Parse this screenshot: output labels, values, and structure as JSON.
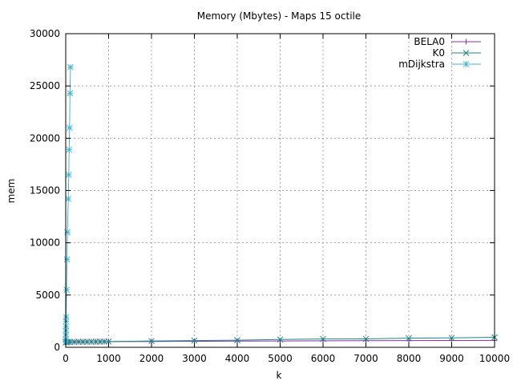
{
  "chart_data": {
    "type": "line",
    "title": "Memory (Mbytes) - Maps 15 octile",
    "xlabel": "k",
    "ylabel": "mem",
    "xlim": [
      0,
      10000
    ],
    "ylim": [
      0,
      30000
    ],
    "xticks": [
      0,
      1000,
      2000,
      3000,
      4000,
      5000,
      6000,
      7000,
      8000,
      9000,
      10000
    ],
    "yticks": [
      0,
      5000,
      10000,
      15000,
      20000,
      25000,
      30000
    ],
    "grid": true,
    "legend_position": "top-right",
    "series": [
      {
        "name": "BELA0",
        "color": "#8b2fa8",
        "marker": "plus",
        "points": [
          [
            1,
            480
          ],
          [
            2,
            490
          ],
          [
            5,
            500
          ],
          [
            10,
            505
          ],
          [
            20,
            510
          ],
          [
            50,
            515
          ],
          [
            100,
            520
          ],
          [
            200,
            525
          ],
          [
            300,
            528
          ],
          [
            400,
            530
          ],
          [
            500,
            533
          ],
          [
            600,
            535
          ],
          [
            700,
            538
          ],
          [
            800,
            540
          ],
          [
            900,
            542
          ],
          [
            1000,
            545
          ],
          [
            2000,
            560
          ],
          [
            3000,
            575
          ],
          [
            4000,
            590
          ],
          [
            5000,
            605
          ],
          [
            6000,
            620
          ],
          [
            7000,
            630
          ],
          [
            8000,
            640
          ],
          [
            9000,
            650
          ],
          [
            10000,
            660
          ]
        ]
      },
      {
        "name": "K0",
        "color": "#1b8a80",
        "marker": "cross",
        "points": [
          [
            1,
            470
          ],
          [
            2,
            480
          ],
          [
            5,
            490
          ],
          [
            10,
            500
          ],
          [
            20,
            505
          ],
          [
            50,
            510
          ],
          [
            100,
            515
          ],
          [
            200,
            520
          ],
          [
            300,
            525
          ],
          [
            400,
            528
          ],
          [
            500,
            530
          ],
          [
            600,
            533
          ],
          [
            700,
            536
          ],
          [
            800,
            540
          ],
          [
            900,
            545
          ],
          [
            1000,
            550
          ],
          [
            2000,
            600
          ],
          [
            3000,
            640
          ],
          [
            4000,
            680
          ],
          [
            5000,
            750
          ],
          [
            6000,
            800
          ],
          [
            7000,
            810
          ],
          [
            8000,
            870
          ],
          [
            9000,
            900
          ],
          [
            10000,
            960
          ]
        ]
      },
      {
        "name": "mDijkstra",
        "color": "#42b7d6",
        "marker": "star",
        "points": [
          [
            1,
            500
          ],
          [
            2,
            800
          ],
          [
            3,
            1200
          ],
          [
            4,
            1600
          ],
          [
            5,
            2000
          ],
          [
            7,
            2500
          ],
          [
            10,
            2900
          ],
          [
            20,
            5500
          ],
          [
            30,
            8400
          ],
          [
            40,
            11000
          ],
          [
            60,
            14200
          ],
          [
            70,
            16500
          ],
          [
            80,
            18900
          ],
          [
            90,
            21000
          ],
          [
            100,
            24300
          ],
          [
            110,
            26800
          ]
        ]
      }
    ]
  }
}
